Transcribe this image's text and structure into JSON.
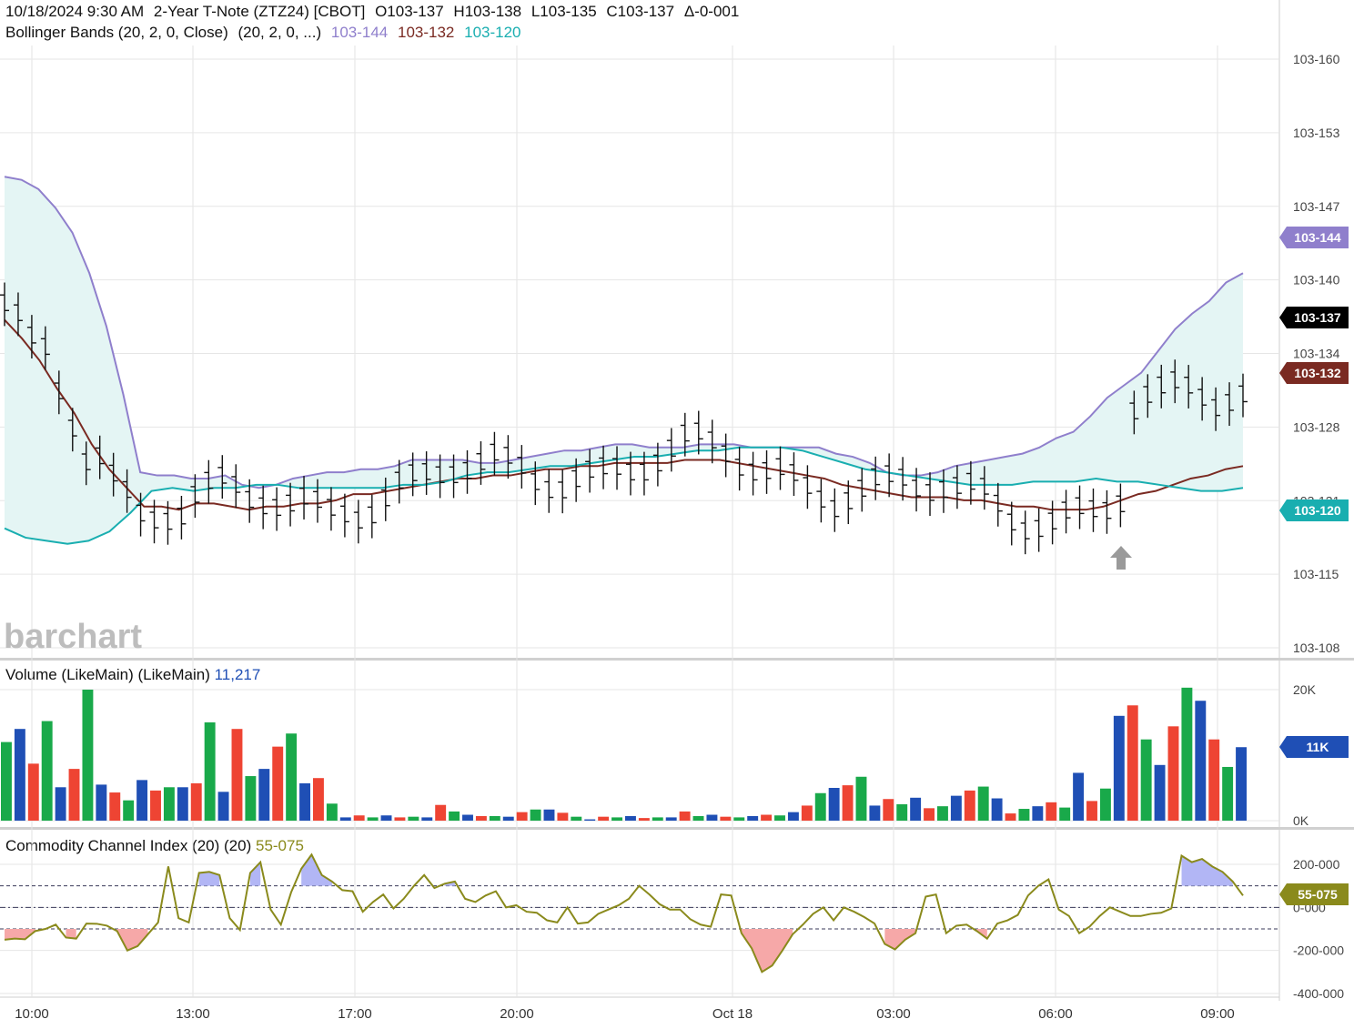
{
  "header": {
    "line1": {
      "datetime": "10/18/2024 9:30 AM",
      "instrument": "2-Year T-Note (ZTZ24) [CBOT]",
      "open": "O103-137",
      "high": "H103-138",
      "low": "L103-135",
      "close": "C103-137",
      "change": "Δ-0-001"
    },
    "line2": {
      "study": "Bollinger Bands (20, 2, 0, Close)",
      "params": "(20, 2, 0, ...)",
      "upper": "103-144",
      "middle": "103-132",
      "lower": "103-120"
    }
  },
  "watermark": "barchart",
  "volume_pane": {
    "title": "Volume (LikeMain)",
    "params": "(LikeMain)",
    "value": "11,217",
    "badge": "11K"
  },
  "cci_pane": {
    "title": "Commodity Channel Index (20)",
    "params": "(20)",
    "value": "55-075",
    "badge": "55-075"
  },
  "badges": {
    "upper": "103-144",
    "last": "103-137",
    "middle": "103-132",
    "lower": "103-120"
  },
  "colors": {
    "upper_band": "#8f7fcc",
    "middle_band": "#7a2a22",
    "lower_band": "#19aeb0",
    "band_fill": "#e4f5f4",
    "vol_up": "#19a94a",
    "vol_down": "#ee4433",
    "vol_neutral": "#1f4fb5",
    "cci_line": "#8a8a1c",
    "cci_pos_fill": "#b2b6f5",
    "cci_neg_fill": "#f6a8a8"
  },
  "chart_data": [
    {
      "type": "line",
      "name": "price",
      "y_ticks": [
        "103-160",
        "103-153",
        "103-147",
        "103-140",
        "103-134",
        "103-128",
        "103-121",
        "103-115",
        "103-108"
      ],
      "x_ticks": [
        "10:00",
        "13:00",
        "17:00",
        "20:00",
        "Oct 18",
        "03:00",
        "06:00",
        "09:00"
      ],
      "series": [
        {
          "name": "upper",
          "values": [
            2.28,
            2.27,
            2.24,
            2.18,
            2.1,
            1.97,
            1.8,
            1.58,
            1.33,
            1.32,
            1.32,
            1.31,
            1.31,
            1.32,
            1.29,
            1.28,
            1.29,
            1.31,
            1.32,
            1.33,
            1.33,
            1.34,
            1.34,
            1.35,
            1.37,
            1.37,
            1.37,
            1.37,
            1.36,
            1.36,
            1.37,
            1.38,
            1.39,
            1.4,
            1.4,
            1.41,
            1.42,
            1.42,
            1.41,
            1.41,
            1.41,
            1.42,
            1.42,
            1.42,
            1.41,
            1.41,
            1.41,
            1.41,
            1.41,
            1.39,
            1.38,
            1.36,
            1.33,
            1.32,
            1.32,
            1.33,
            1.35,
            1.36,
            1.37,
            1.38,
            1.39,
            1.41,
            1.44,
            1.46,
            1.51,
            1.57,
            1.61,
            1.65,
            1.72,
            1.79,
            1.84,
            1.88,
            1.94,
            1.97
          ]
        },
        {
          "name": "middle",
          "values": [
            1.82,
            1.76,
            1.69,
            1.6,
            1.52,
            1.42,
            1.34,
            1.28,
            1.22,
            1.22,
            1.21,
            1.23,
            1.23,
            1.22,
            1.21,
            1.22,
            1.22,
            1.23,
            1.23,
            1.24,
            1.26,
            1.26,
            1.27,
            1.28,
            1.29,
            1.3,
            1.31,
            1.31,
            1.32,
            1.32,
            1.33,
            1.34,
            1.34,
            1.35,
            1.35,
            1.36,
            1.36,
            1.36,
            1.36,
            1.37,
            1.37,
            1.37,
            1.36,
            1.35,
            1.34,
            1.33,
            1.32,
            1.31,
            1.29,
            1.28,
            1.27,
            1.26,
            1.25,
            1.25,
            1.25,
            1.24,
            1.24,
            1.23,
            1.22,
            1.22,
            1.21,
            1.21,
            1.21,
            1.22,
            1.24,
            1.26,
            1.27,
            1.29,
            1.31,
            1.32,
            1.34,
            1.35
          ]
        },
        {
          "name": "lower",
          "values": [
            1.15,
            1.12,
            1.11,
            1.1,
            1.11,
            1.14,
            1.2,
            1.27,
            1.28,
            1.27,
            1.28,
            1.28,
            1.29,
            1.29,
            1.28,
            1.28,
            1.28,
            1.28,
            1.28,
            1.29,
            1.29,
            1.3,
            1.32,
            1.33,
            1.33,
            1.34,
            1.35,
            1.35,
            1.36,
            1.37,
            1.38,
            1.38,
            1.39,
            1.4,
            1.4,
            1.41,
            1.41,
            1.41,
            1.4,
            1.38,
            1.36,
            1.34,
            1.33,
            1.32,
            1.31,
            1.3,
            1.29,
            1.29,
            1.29,
            1.3,
            1.3,
            1.3,
            1.31,
            1.3,
            1.3,
            1.29,
            1.28,
            1.27,
            1.27,
            1.28
          ]
        }
      ],
      "ylim_label_low": "103-108",
      "ylim_label_high": "103-160"
    },
    {
      "type": "bar",
      "name": "volume",
      "y_ticks": [
        "20K",
        "0K"
      ],
      "values": [
        12000,
        14000,
        8700,
        15200,
        5100,
        7900,
        20000,
        5500,
        4300,
        3100,
        6200,
        4600,
        5100,
        5100,
        5700,
        15000,
        4400,
        14000,
        6800,
        7900,
        11300,
        13300,
        5700,
        6500,
        2600,
        500,
        800,
        500,
        800,
        500,
        600,
        500,
        2400,
        1400,
        900,
        700,
        700,
        600,
        1300,
        1700,
        1700,
        1200,
        600,
        200,
        600,
        500,
        700,
        400,
        500,
        500,
        1400,
        700,
        900,
        600,
        500,
        700,
        900,
        800,
        1300,
        2300,
        4200,
        5000,
        5400,
        6700,
        2300,
        3300,
        2500,
        3500,
        1900,
        2200,
        3800,
        4600,
        5200,
        3400,
        1100,
        1800,
        2200,
        2800,
        2000,
        7300,
        3000,
        4900,
        16000,
        17600,
        12400,
        8500,
        14400,
        20300,
        18300,
        12400,
        8200,
        11217
      ],
      "ylim": [
        0,
        20000
      ]
    },
    {
      "type": "line",
      "name": "cci",
      "y_ticks": [
        "200-000",
        "0-000",
        "-200-000",
        "-400-000"
      ],
      "values": [
        -150,
        -145,
        -148,
        -110,
        -100,
        -80,
        -140,
        -145,
        -75,
        -76,
        -85,
        -110,
        -200,
        -180,
        -125,
        -70,
        190,
        -50,
        -70,
        160,
        165,
        150,
        -50,
        -105,
        160,
        210,
        -10,
        -80,
        70,
        180,
        245,
        150,
        120,
        80,
        75,
        -20,
        25,
        60,
        -5,
        40,
        100,
        150,
        90,
        110,
        120,
        40,
        25,
        55,
        75,
        0,
        10,
        -20,
        -25,
        -60,
        -70,
        0,
        -75,
        -70,
        -30,
        -10,
        10,
        40,
        100,
        60,
        15,
        -10,
        -10,
        -55,
        -80,
        -90,
        60,
        55,
        -120,
        -190,
        -300,
        -270,
        -200,
        -125,
        -80,
        -30,
        0,
        -60,
        0,
        -20,
        -45,
        -75,
        -170,
        -195,
        -150,
        -120,
        50,
        60,
        -120,
        -85,
        -80,
        -110,
        -145,
        -75,
        -60,
        -35,
        55,
        100,
        130,
        -10,
        -40,
        -120,
        -90,
        -40,
        0,
        -20,
        -40,
        -40,
        -30,
        -25,
        -5,
        240,
        210,
        225,
        190,
        165,
        120,
        55
      ],
      "ylim": [
        -400,
        300
      ]
    }
  ]
}
